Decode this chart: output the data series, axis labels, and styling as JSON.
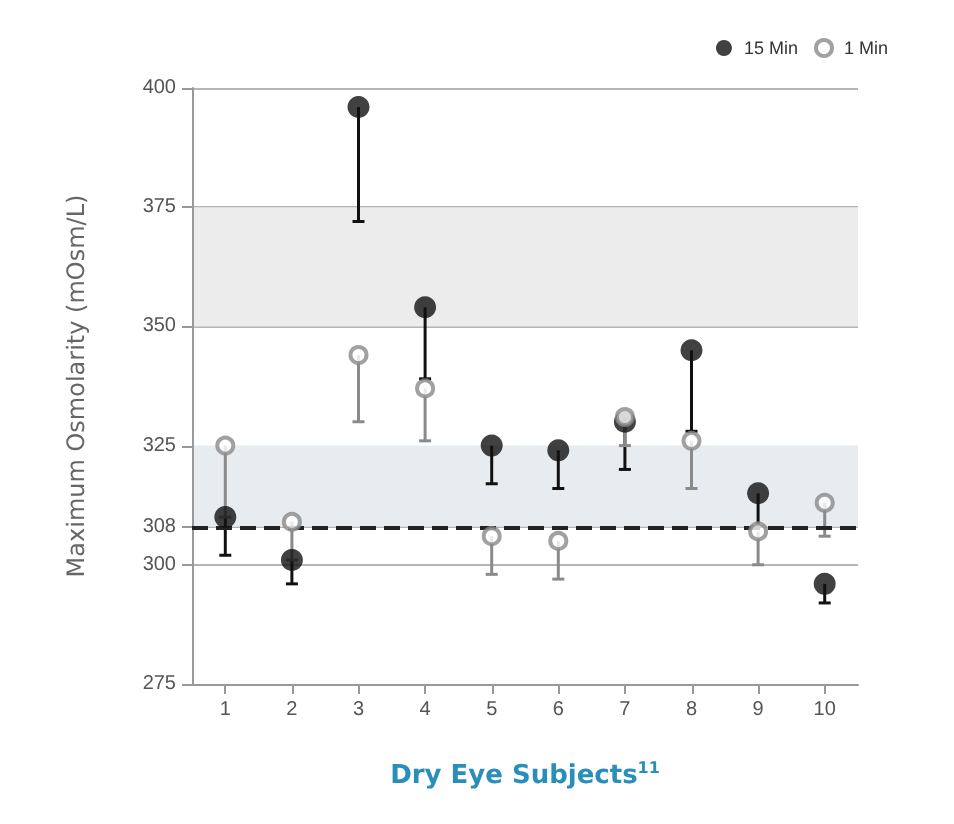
{
  "chart_data": {
    "type": "scatter",
    "xlabel": "Dry Eye Subjects$^{11}$",
    "ylabel": "Maximum Osmolarity (mOsm/L)",
    "categories": [
      "1",
      "2",
      "3",
      "4",
      "5",
      "6",
      "7",
      "8",
      "9",
      "10"
    ],
    "series": [
      {
        "name": "15 Min",
        "color": "#111111",
        "values": [
          310,
          301,
          396,
          354,
          325,
          324,
          330,
          345,
          315,
          296
        ],
        "errors": [
          [
            302,
            310
          ],
          [
            296,
            301
          ],
          [
            372,
            396
          ],
          [
            339,
            354
          ],
          [
            317,
            325
          ],
          [
            316,
            324
          ],
          [
            320,
            330
          ],
          [
            328,
            345
          ],
          [
            308,
            315
          ],
          [
            292,
            296
          ]
        ]
      },
      {
        "name": "1 Min",
        "color": "#8a8a8a",
        "values": [
          325,
          309,
          344,
          337,
          306,
          305,
          331,
          326,
          307,
          313
        ],
        "errors": [
          [
            310,
            325
          ],
          [
            301,
            309
          ],
          [
            330,
            344
          ],
          [
            326,
            337
          ],
          [
            298,
            306
          ],
          [
            297,
            305
          ],
          [
            325,
            331
          ],
          [
            316,
            326
          ],
          [
            300,
            307
          ],
          [
            306,
            313
          ]
        ]
      }
    ],
    "ylim": [
      275,
      400
    ],
    "yticks": [
      275,
      300,
      308,
      325,
      350,
      375,
      400
    ],
    "grid": "y",
    "legend": "top right",
    "marker": "circle",
    "ref_lines": [
      {
        "axis": "y",
        "value": 308,
        "label": null,
        "line_style": "dashed",
        "color": "#222222"
      }
    ],
    "bands": [
      {
        "axis": "y",
        "from": 350,
        "to": 375,
        "label": null,
        "color": "#ececec"
      },
      {
        "axis": "y",
        "from": 308,
        "to": 325,
        "label": null,
        "color": "#e6ecef"
      }
    ]
  }
}
